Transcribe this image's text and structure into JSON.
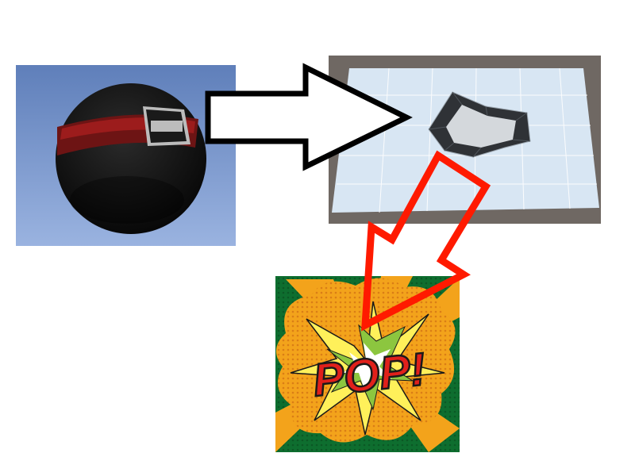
{
  "panels": {
    "ball": {
      "label_icon": "bomb-ball-icon"
    },
    "plane": {
      "label_icon": "crater-plane-icon"
    },
    "pop": {
      "text": "POP!",
      "label_icon": "pop-burst-icon"
    }
  },
  "arrows": {
    "ball_to_plane": {
      "style": "outlined",
      "color": "#000000"
    },
    "plane_to_pop": {
      "style": "outlined",
      "color": "#ff1a00"
    }
  },
  "colors": {
    "sky_top": "#5f7fba",
    "sky_bottom": "#9ab3e0",
    "plane": "#d8e6f3",
    "plane_frame": "#6f6863",
    "burst_green": "#0e6e2f",
    "burst_orange": "#f3a31b",
    "burst_yellow": "#fff05a",
    "pop_red": "#e0201b"
  }
}
